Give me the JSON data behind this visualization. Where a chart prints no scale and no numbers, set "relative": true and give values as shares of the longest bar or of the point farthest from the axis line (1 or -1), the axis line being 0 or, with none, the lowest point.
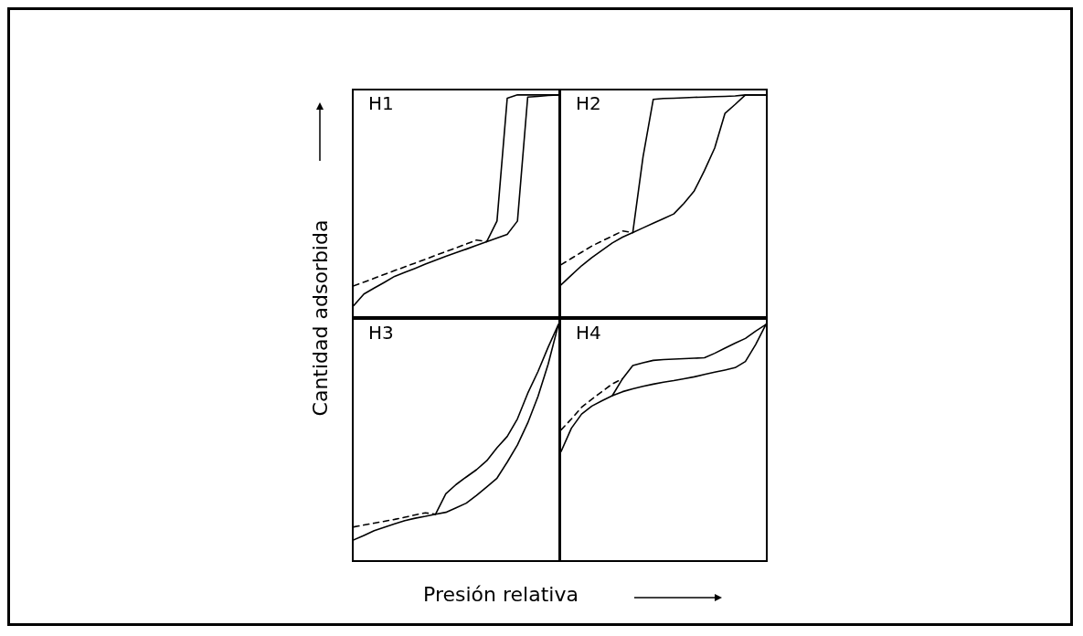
{
  "chart_data": [
    {
      "type": "line",
      "title": "H1",
      "ylabel": "Cantidad adsorbida",
      "relative": true,
      "tick_labels": false,
      "legend": false,
      "grid": false,
      "categories": [
        null,
        null,
        null,
        null,
        null,
        null,
        null,
        null,
        null,
        null,
        null,
        null,
        null,
        null,
        null,
        null,
        null,
        null,
        null,
        null,
        null
      ],
      "series": [
        {
          "color": "#000000",
          "line_style": "solid",
          "values": [
            0.048,
            0.1,
            0.127,
            0.153,
            0.18,
            0.198,
            0.216,
            0.235,
            0.253,
            0.27,
            0.287,
            0.303,
            0.32,
            0.337,
            0.353,
            0.37,
            0.43,
            0.99,
            0.993,
            0.997,
            1
          ]
        },
        {
          "color": "#000000",
          "line_style": "solid",
          "values": [
            null,
            null,
            null,
            null,
            null,
            null,
            null,
            null,
            null,
            null,
            null,
            null,
            null,
            0.337,
            0.43,
            0.985,
            1,
            1,
            1,
            1,
            1
          ]
        },
        {
          "color": "#000000",
          "line_style": "dashed",
          "values": [
            0.137,
            0.154,
            0.171,
            0.189,
            0.206,
            0.223,
            0.24,
            0.257,
            0.275,
            0.292,
            0.309,
            0.326,
            0.344,
            0.337,
            null,
            null,
            null,
            null,
            null,
            null,
            null
          ]
        }
      ]
    },
    {
      "type": "line",
      "title": "H2",
      "relative": true,
      "tick_labels": false,
      "legend": false,
      "grid": false,
      "categories": [
        null,
        null,
        null,
        null,
        null,
        null,
        null,
        null,
        null,
        null,
        null,
        null,
        null,
        null,
        null,
        null,
        null,
        null,
        null,
        null,
        null
      ],
      "series": [
        {
          "color": "#000000",
          "line_style": "solid",
          "values": [
            0.142,
            0.185,
            0.228,
            0.265,
            0.298,
            0.331,
            0.357,
            0.378,
            0.399,
            0.42,
            0.441,
            0.462,
            0.51,
            0.566,
            0.658,
            0.76,
            0.916,
            0.957,
            1,
            1,
            1
          ]
        },
        {
          "color": "#000000",
          "line_style": "solid",
          "values": [
            null,
            null,
            null,
            null,
            null,
            null,
            null,
            0.378,
            0.72,
            0.98,
            0.984,
            0.985,
            0.987,
            0.989,
            0.99,
            0.992,
            0.993,
            0.995,
            1,
            1,
            1
          ]
        },
        {
          "color": "#000000",
          "line_style": "dashed",
          "values": [
            0.233,
            0.261,
            0.289,
            0.317,
            0.34,
            0.362,
            0.385,
            0.378,
            null,
            null,
            null,
            null,
            null,
            null,
            null,
            null,
            null,
            null,
            null,
            null,
            null
          ]
        }
      ]
    },
    {
      "type": "line",
      "title": "H3",
      "xlabel": "Presión relativa",
      "relative": true,
      "tick_labels": false,
      "legend": false,
      "grid": false,
      "categories": [
        null,
        null,
        null,
        null,
        null,
        null,
        null,
        null,
        null,
        null,
        null,
        null,
        null,
        null,
        null,
        null,
        null,
        null,
        null,
        null,
        null
      ],
      "series": [
        {
          "color": "#000000",
          "line_style": "solid",
          "values": [
            0.086,
            0.105,
            0.125,
            0.14,
            0.154,
            0.168,
            0.178,
            0.186,
            0.195,
            0.203,
            0.222,
            0.242,
            0.275,
            0.311,
            0.348,
            0.416,
            0.489,
            0.582,
            0.694,
            0.832,
            1
          ]
        },
        {
          "color": "#000000",
          "line_style": "solid",
          "values": [
            null,
            null,
            null,
            null,
            null,
            null,
            null,
            null,
            0.195,
            0.282,
            0.321,
            0.353,
            0.384,
            0.422,
            0.477,
            0.525,
            0.6,
            0.708,
            0.8,
            0.904,
            1
          ]
        },
        {
          "color": "#000000",
          "line_style": "dashed",
          "values": [
            0.141,
            0.149,
            0.157,
            0.165,
            0.173,
            0.182,
            0.192,
            0.201,
            0.195,
            null,
            null,
            null,
            null,
            null,
            null,
            null,
            null,
            null,
            null,
            null,
            null
          ]
        }
      ]
    },
    {
      "type": "line",
      "title": "H4",
      "relative": true,
      "tick_labels": false,
      "legend": false,
      "grid": false,
      "categories": [
        null,
        null,
        null,
        null,
        null,
        null,
        null,
        null,
        null,
        null,
        null,
        null,
        null,
        null,
        null,
        null,
        null,
        null,
        null,
        null,
        null
      ],
      "series": [
        {
          "color": "#000000",
          "line_style": "solid",
          "values": [
            0.462,
            0.56,
            0.62,
            0.654,
            0.677,
            0.698,
            0.715,
            0.727,
            0.738,
            0.747,
            0.755,
            0.762,
            0.77,
            0.778,
            0.788,
            0.798,
            0.807,
            0.817,
            0.843,
            0.915,
            1
          ]
        },
        {
          "color": "#000000",
          "line_style": "solid",
          "values": [
            null,
            null,
            null,
            null,
            null,
            0.698,
            0.77,
            0.826,
            0.838,
            0.848,
            0.851,
            0.853,
            0.855,
            0.857,
            0.859,
            0.878,
            0.9,
            0.921,
            0.941,
            0.972,
            1
          ]
        },
        {
          "color": "#000000",
          "line_style": "dashed",
          "values": [
            0.553,
            0.599,
            0.649,
            0.683,
            0.716,
            0.748,
            0.77,
            null,
            null,
            null,
            null,
            null,
            null,
            null,
            null,
            null,
            null,
            null,
            null,
            null,
            null
          ]
        }
      ]
    }
  ]
}
